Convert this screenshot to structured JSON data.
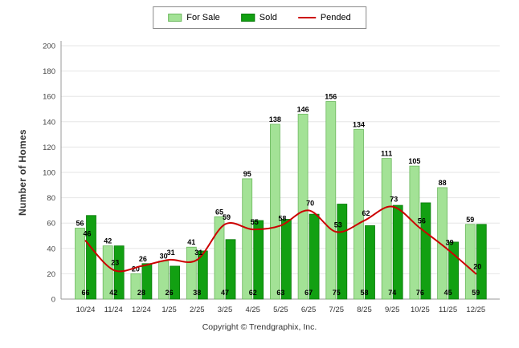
{
  "chart_data": {
    "type": "bar",
    "title": "",
    "categories": [
      "10/24",
      "11/24",
      "12/24",
      "1/25",
      "2/25",
      "3/25",
      "4/25",
      "5/25",
      "6/25",
      "7/25",
      "8/25",
      "9/25",
      "10/25",
      "11/25",
      "12/25"
    ],
    "series": [
      {
        "name": "For Sale",
        "type": "bar",
        "color": "#a3e296",
        "border_color": "#6cb85e",
        "values": [
          56,
          42,
          20,
          30,
          41,
          65,
          95,
          138,
          146,
          156,
          134,
          111,
          105,
          88,
          59
        ]
      },
      {
        "name": "Sold",
        "type": "bar",
        "color": "#12a012",
        "border_color": "#0a7a0a",
        "values": [
          66,
          42,
          28,
          26,
          38,
          47,
          62,
          63,
          67,
          75,
          58,
          74,
          76,
          45,
          59
        ]
      },
      {
        "name": "Pended",
        "type": "line",
        "color": "#cc0000",
        "values": [
          46,
          23,
          26,
          31,
          31,
          59,
          55,
          58,
          70,
          53,
          62,
          73,
          56,
          39,
          20
        ]
      }
    ],
    "xlabel": "",
    "ylabel": "Number of Homes",
    "ylim": [
      0,
      200
    ],
    "ytick_step": 20,
    "grid": true,
    "legend_position": "top-center",
    "value_labels": true
  },
  "footer": {
    "copyright": "Copyright © Trendgraphix, Inc."
  }
}
